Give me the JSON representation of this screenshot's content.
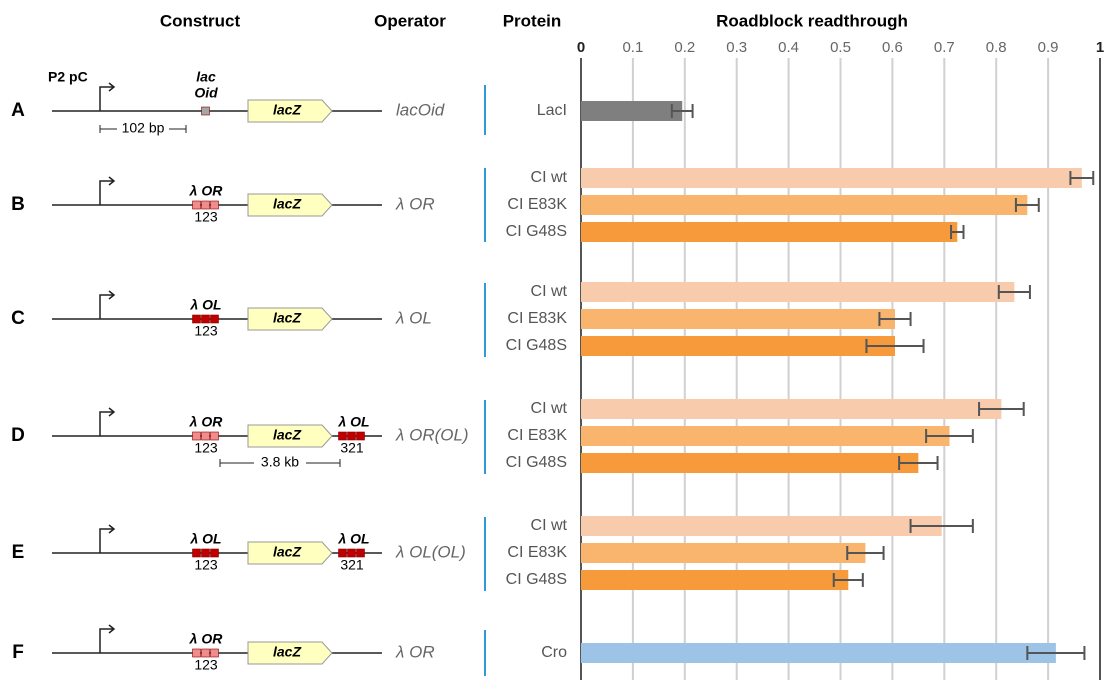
{
  "headers": {
    "construct": "Construct",
    "operator": "Operator",
    "protein": "Protein"
  },
  "constructs": [
    {
      "letter": "A",
      "promoter": "P2 pC",
      "site_lines": [
        "lac",
        "Oid"
      ],
      "site_color": "#a6a6a6",
      "gene": "lacZ",
      "spacing": "102 bp",
      "operator": "lacOid"
    },
    {
      "letter": "B",
      "site_lines": [
        "λ OR"
      ],
      "site_numbers": "123",
      "site_color": "#f08c8c",
      "gene": "lacZ",
      "operator": "λ OR"
    },
    {
      "letter": "C",
      "site_lines": [
        "λ OL"
      ],
      "site_numbers": "123",
      "site_color": "#c00000",
      "gene": "lacZ",
      "operator": "λ OL"
    },
    {
      "letter": "D",
      "site_lines": [
        "λ OR"
      ],
      "site_numbers": "123",
      "site_color": "#f08c8c",
      "gene": "lacZ",
      "site2": "λ OL",
      "site2_numbers": "321",
      "site2_color": "#c00000",
      "spacing": "3.8 kb",
      "operator": "λ OR(OL)"
    },
    {
      "letter": "E",
      "site_lines": [
        "λ OL"
      ],
      "site_numbers": "123",
      "site_color": "#c00000",
      "gene": "lacZ",
      "site2": "λ OL",
      "site2_numbers": "321",
      "site2_color": "#c00000",
      "operator": "λ OL(OL)"
    },
    {
      "letter": "F",
      "site_lines": [
        "λ OR"
      ],
      "site_numbers": "123",
      "site_color": "#f08c8c",
      "gene": "lacZ",
      "operator": "λ OR"
    }
  ],
  "chart_data": {
    "type": "hbar",
    "title": "Roadblock readthrough",
    "categories": [
      "LacI",
      "CI wt",
      "CI E83K",
      "CI G48S",
      "CI wt",
      "CI E83K",
      "CI G48S",
      "CI wt",
      "CI E83K",
      "CI G48S",
      "CI wt",
      "CI E83K",
      "CI G48S",
      "Cro"
    ],
    "values": [
      0.195,
      0.965,
      0.86,
      0.725,
      0.835,
      0.605,
      0.605,
      0.81,
      0.71,
      0.65,
      0.695,
      0.548,
      0.515,
      0.915
    ],
    "errors": [
      0.02,
      0.022,
      0.022,
      0.012,
      0.03,
      0.03,
      0.055,
      0.043,
      0.045,
      0.037,
      0.06,
      0.035,
      0.028,
      0.055
    ],
    "colors": [
      "#7f7f7f",
      "#f8cbad",
      "#f9b46e",
      "#f79a3b",
      "#f8cbad",
      "#f9b46e",
      "#f79a3b",
      "#f8cbad",
      "#f9b46e",
      "#f79a3b",
      "#f8cbad",
      "#f9b46e",
      "#f79a3b",
      "#9dc3e6"
    ],
    "xlim": [
      0,
      1
    ],
    "xticks": [
      0,
      0.1,
      0.2,
      0.3,
      0.4,
      0.5,
      0.6,
      0.7,
      0.8,
      0.9,
      1
    ],
    "grid": true
  }
}
